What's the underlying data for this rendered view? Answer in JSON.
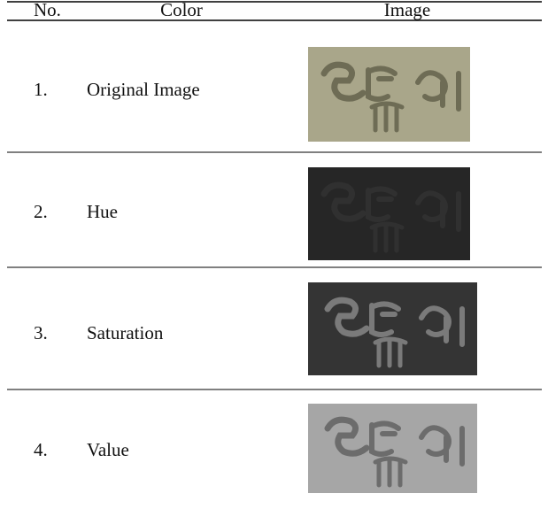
{
  "table": {
    "header": [
      "No.",
      "Color",
      "Image"
    ],
    "rows": [
      [
        "1.",
        "Original Image"
      ],
      [
        "2.",
        "Hue"
      ],
      [
        "3.",
        "Saturation"
      ],
      [
        "4.",
        "Value"
      ]
    ]
  }
}
